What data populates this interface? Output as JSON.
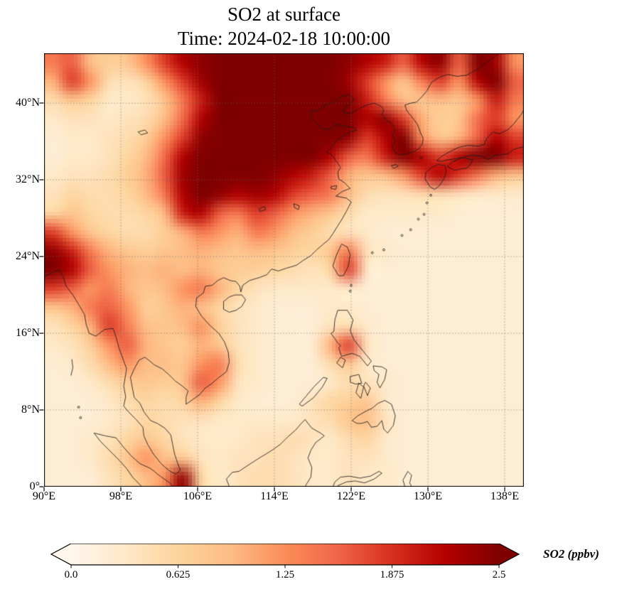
{
  "chart_data": {
    "type": "heatmap",
    "title": "SO2 at surface",
    "subtitle": "Time: 2024-02-18 10:00:00",
    "variable": "SO2",
    "units": "ppbv",
    "x_axis": {
      "tick_labels": [
        "90°E",
        "98°E",
        "106°E",
        "114°E",
        "122°E",
        "130°E",
        "138°E"
      ],
      "tick_values": [
        90,
        98,
        106,
        114,
        122,
        130,
        138
      ],
      "range": [
        90,
        140
      ]
    },
    "y_axis": {
      "tick_labels": [
        "0°",
        "8°N",
        "16°N",
        "24°N",
        "32°N",
        "40°N"
      ],
      "tick_values": [
        0,
        8,
        16,
        24,
        32,
        40
      ],
      "range": [
        0,
        45.2
      ]
    },
    "grid_lines": true,
    "colormap": {
      "name": "OrRd",
      "colors": [
        "#fff7ec",
        "#fee8c8",
        "#fdd49e",
        "#fdbb84",
        "#fc8d59",
        "#ef6548",
        "#d7301f",
        "#b30000",
        "#7f0000"
      ]
    },
    "colorbar": {
      "label": "SO2 (ppbv)",
      "tick_labels": [
        "0.0",
        "0.625",
        "1.25",
        "1.875",
        "2.5"
      ],
      "tick_values": [
        0,
        0.625,
        1.25,
        1.875,
        2.5
      ],
      "vmin": 0,
      "vmax": 2.5,
      "extend": "both",
      "orientation": "horizontal"
    },
    "grid": {
      "lon_start": 90,
      "lon_step": 2,
      "lat_start": 45,
      "lat_step": -2,
      "units": "ppbv",
      "values": [
        [
          1.4,
          1.6,
          0.9,
          0.7,
          0.8,
          1.2,
          1.8,
          2.2,
          2.4,
          2.5,
          2.5,
          2.5,
          2.5,
          2.5,
          2.5,
          2.5,
          2.4,
          2.2,
          2.0,
          1.6,
          2.2,
          2.4,
          1.6,
          2.5,
          2.3,
          1.2
        ],
        [
          1.0,
          1.8,
          1.2,
          0.5,
          0.4,
          0.6,
          1.2,
          1.8,
          2.3,
          2.5,
          2.5,
          2.5,
          2.5,
          2.5,
          2.5,
          2.5,
          2.3,
          1.8,
          1.2,
          0.8,
          1.4,
          1.8,
          1.2,
          2.2,
          2.5,
          1.6
        ],
        [
          0.5,
          0.8,
          0.6,
          0.3,
          0.3,
          0.4,
          0.8,
          1.4,
          2.0,
          2.5,
          2.5,
          2.5,
          2.5,
          2.5,
          2.5,
          2.5,
          2.5,
          2.0,
          1.4,
          0.9,
          0.8,
          0.9,
          0.8,
          1.2,
          2.0,
          1.4
        ],
        [
          0.3,
          0.4,
          0.4,
          0.3,
          0.4,
          0.5,
          0.9,
          1.5,
          2.2,
          2.5,
          2.5,
          2.5,
          2.5,
          2.5,
          2.5,
          2.5,
          2.5,
          2.2,
          2.4,
          1.8,
          1.0,
          0.7,
          0.8,
          1.5,
          1.8,
          1.2
        ],
        [
          0.2,
          0.3,
          0.3,
          0.4,
          0.5,
          0.7,
          1.2,
          1.8,
          2.4,
          2.5,
          2.5,
          2.5,
          2.5,
          2.5,
          2.5,
          2.5,
          2.4,
          1.8,
          2.2,
          2.5,
          1.2,
          0.8,
          1.0,
          1.6,
          2.2,
          1.8
        ],
        [
          0.2,
          0.3,
          0.3,
          0.4,
          0.6,
          0.9,
          1.5,
          2.2,
          2.5,
          2.5,
          2.5,
          2.5,
          2.5,
          2.5,
          2.5,
          2.2,
          1.6,
          1.4,
          2.0,
          2.5,
          2.2,
          1.8,
          2.2,
          2.5,
          2.5,
          2.0
        ],
        [
          0.3,
          0.4,
          0.4,
          0.5,
          0.7,
          1.0,
          1.6,
          2.3,
          2.5,
          2.5,
          2.5,
          2.5,
          2.4,
          2.2,
          2.0,
          1.6,
          1.0,
          0.8,
          0.9,
          1.2,
          1.8,
          2.2,
          1.8,
          1.4,
          1.0,
          0.8
        ],
        [
          0.4,
          0.6,
          0.5,
          0.5,
          0.6,
          0.9,
          1.4,
          2.2,
          2.5,
          2.4,
          2.2,
          2.3,
          2.2,
          1.8,
          1.6,
          1.4,
          0.9,
          0.5,
          0.4,
          0.4,
          0.5,
          0.5,
          0.4,
          0.3,
          0.3,
          0.3
        ],
        [
          0.6,
          0.8,
          0.6,
          0.5,
          0.5,
          0.6,
          0.9,
          2.0,
          2.2,
          1.6,
          1.4,
          1.8,
          1.6,
          1.2,
          1.0,
          0.8,
          0.5,
          0.3,
          0.3,
          0.3,
          0.3,
          0.3,
          0.2,
          0.2,
          0.2,
          0.2
        ],
        [
          1.8,
          1.2,
          0.8,
          0.6,
          0.5,
          0.5,
          0.7,
          1.0,
          1.4,
          1.2,
          1.0,
          1.4,
          1.2,
          0.9,
          0.7,
          0.5,
          0.4,
          0.3,
          0.2,
          0.2,
          0.2,
          0.2,
          0.2,
          0.2,
          0.2,
          0.2
        ],
        [
          2.4,
          2.0,
          1.4,
          1.0,
          0.8,
          0.7,
          0.8,
          0.9,
          1.0,
          0.9,
          0.8,
          0.9,
          0.8,
          0.7,
          0.6,
          0.8,
          1.4,
          0.4,
          0.3,
          0.2,
          0.2,
          0.2,
          0.2,
          0.2,
          0.2,
          0.2
        ],
        [
          2.5,
          2.2,
          1.6,
          1.2,
          1.0,
          0.9,
          1.0,
          0.9,
          1.0,
          0.8,
          0.7,
          0.7,
          0.6,
          0.5,
          0.4,
          0.6,
          1.8,
          0.3,
          0.2,
          0.2,
          0.2,
          0.2,
          0.2,
          0.2,
          0.2,
          0.2
        ],
        [
          1.8,
          1.6,
          1.2,
          1.4,
          1.0,
          0.8,
          0.9,
          1.2,
          1.4,
          1.0,
          0.6,
          0.4,
          0.3,
          0.3,
          0.3,
          0.3,
          0.3,
          0.2,
          0.2,
          0.2,
          0.2,
          0.2,
          0.2,
          0.2,
          0.2,
          0.2
        ],
        [
          0.8,
          1.0,
          1.4,
          1.6,
          1.2,
          0.7,
          0.8,
          1.0,
          0.9,
          0.6,
          0.4,
          0.3,
          0.2,
          0.2,
          0.2,
          0.3,
          0.3,
          0.2,
          0.2,
          0.2,
          0.2,
          0.2,
          0.2,
          0.2,
          0.2,
          0.2
        ],
        [
          0.4,
          0.6,
          1.0,
          1.8,
          1.4,
          0.9,
          0.8,
          0.9,
          1.2,
          0.7,
          0.4,
          0.3,
          0.2,
          0.2,
          0.2,
          0.4,
          0.5,
          0.3,
          0.2,
          0.2,
          0.2,
          0.2,
          0.2,
          0.2,
          0.2,
          0.2
        ],
        [
          0.3,
          0.4,
          0.7,
          1.2,
          1.6,
          1.0,
          0.8,
          0.7,
          1.0,
          0.8,
          0.4,
          0.3,
          0.2,
          0.2,
          0.2,
          1.0,
          1.8,
          0.4,
          0.2,
          0.2,
          0.2,
          0.2,
          0.2,
          0.2,
          0.2,
          0.2
        ],
        [
          0.2,
          0.3,
          0.5,
          0.9,
          1.2,
          0.9,
          0.9,
          0.8,
          1.2,
          1.4,
          0.5,
          0.3,
          0.2,
          0.2,
          0.2,
          0.5,
          0.8,
          0.3,
          0.2,
          0.2,
          0.2,
          0.2,
          0.2,
          0.2,
          0.2,
          0.2
        ],
        [
          0.2,
          0.2,
          0.3,
          0.5,
          0.7,
          0.8,
          0.7,
          0.8,
          1.6,
          1.2,
          0.4,
          0.3,
          0.2,
          0.2,
          0.2,
          0.3,
          0.5,
          0.4,
          0.3,
          0.2,
          0.2,
          0.2,
          0.2,
          0.2,
          0.2,
          0.2
        ],
        [
          0.2,
          0.2,
          0.2,
          0.3,
          0.5,
          0.6,
          0.5,
          0.6,
          1.0,
          0.6,
          0.3,
          0.2,
          0.2,
          0.2,
          0.4,
          0.6,
          0.7,
          0.8,
          0.3,
          0.2,
          0.2,
          0.2,
          0.2,
          0.2,
          0.2,
          0.2
        ],
        [
          0.2,
          0.2,
          0.2,
          0.3,
          0.4,
          0.6,
          0.5,
          0.4,
          0.4,
          0.3,
          0.3,
          0.3,
          0.3,
          0.3,
          0.4,
          0.5,
          0.8,
          0.9,
          0.4,
          0.2,
          0.2,
          0.2,
          0.2,
          0.2,
          0.2,
          0.2
        ],
        [
          0.2,
          0.2,
          0.3,
          0.4,
          0.6,
          0.8,
          0.6,
          0.4,
          0.3,
          0.3,
          0.3,
          0.4,
          0.4,
          0.5,
          0.4,
          0.3,
          0.5,
          0.6,
          0.3,
          0.2,
          0.2,
          0.2,
          0.2,
          0.2,
          0.2,
          0.2
        ],
        [
          0.2,
          0.2,
          0.3,
          0.5,
          0.8,
          1.2,
          0.9,
          0.8,
          0.4,
          0.3,
          0.4,
          0.4,
          0.5,
          0.4,
          0.3,
          0.3,
          0.4,
          0.4,
          0.3,
          0.2,
          0.2,
          0.2,
          0.2,
          0.2,
          0.2,
          0.2
        ],
        [
          0.2,
          0.2,
          0.2,
          0.4,
          0.6,
          0.9,
          1.2,
          2.4,
          0.6,
          0.3,
          0.4,
          0.5,
          0.5,
          0.4,
          0.3,
          0.3,
          0.4,
          0.3,
          0.3,
          0.2,
          0.2,
          0.2,
          0.2,
          0.2,
          0.2,
          0.2
        ]
      ]
    }
  }
}
